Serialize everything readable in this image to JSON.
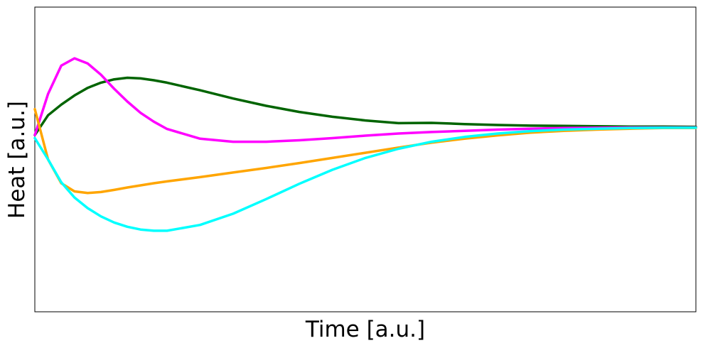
{
  "chart_data": {
    "type": "line",
    "xlabel": "Time [a.u.]",
    "ylabel": "Heat [a.u.]",
    "xlim": [
      0,
      1
    ],
    "ylim": [
      0,
      1
    ],
    "xticks": [],
    "yticks": [],
    "grid": false,
    "legend": false,
    "series": [
      {
        "color": "#006400",
        "x": [
          0,
          0.02,
          0.04,
          0.06,
          0.08,
          0.1,
          0.12,
          0.14,
          0.16,
          0.18,
          0.2,
          0.25,
          0.3,
          0.35,
          0.4,
          0.45,
          0.5,
          0.55,
          0.6,
          0.65,
          0.7,
          0.75,
          0.8,
          0.85,
          0.9,
          0.95,
          1.0
        ],
        "y": [
          0.58,
          0.645,
          0.68,
          0.71,
          0.735,
          0.752,
          0.763,
          0.768,
          0.766,
          0.76,
          0.752,
          0.727,
          0.7,
          0.676,
          0.656,
          0.64,
          0.628,
          0.619,
          0.62,
          0.616,
          0.613,
          0.611,
          0.61,
          0.609,
          0.608,
          0.608,
          0.607
        ]
      },
      {
        "color": "#ff00ff",
        "x": [
          0,
          0.02,
          0.04,
          0.06,
          0.08,
          0.1,
          0.12,
          0.14,
          0.16,
          0.18,
          0.2,
          0.25,
          0.3,
          0.35,
          0.4,
          0.45,
          0.5,
          0.55,
          0.6,
          0.65,
          0.7,
          0.75,
          0.8,
          0.85,
          0.9,
          0.95,
          1.0
        ],
        "y": [
          0.58,
          0.715,
          0.808,
          0.832,
          0.815,
          0.778,
          0.732,
          0.69,
          0.653,
          0.624,
          0.6,
          0.568,
          0.558,
          0.558,
          0.563,
          0.57,
          0.578,
          0.585,
          0.59,
          0.594,
          0.598,
          0.601,
          0.603,
          0.604,
          0.605,
          0.605,
          0.605
        ]
      },
      {
        "color": "#ffa500",
        "x": [
          0,
          0.02,
          0.04,
          0.06,
          0.08,
          0.1,
          0.12,
          0.14,
          0.16,
          0.18,
          0.2,
          0.25,
          0.3,
          0.35,
          0.4,
          0.45,
          0.5,
          0.55,
          0.6,
          0.65,
          0.7,
          0.75,
          0.8,
          0.85,
          0.9,
          0.95,
          1.0
        ],
        "y": [
          0.665,
          0.5,
          0.422,
          0.395,
          0.39,
          0.393,
          0.4,
          0.408,
          0.415,
          0.422,
          0.428,
          0.442,
          0.457,
          0.472,
          0.488,
          0.505,
          0.522,
          0.539,
          0.555,
          0.568,
          0.579,
          0.588,
          0.594,
          0.598,
          0.601,
          0.603,
          0.603
        ]
      },
      {
        "color": "#00ffff",
        "x": [
          0,
          0.02,
          0.04,
          0.06,
          0.08,
          0.1,
          0.12,
          0.14,
          0.16,
          0.18,
          0.2,
          0.25,
          0.3,
          0.35,
          0.4,
          0.45,
          0.5,
          0.55,
          0.6,
          0.65,
          0.7,
          0.75,
          0.8,
          0.85,
          0.9,
          0.95,
          1.0
        ],
        "y": [
          0.57,
          0.5,
          0.425,
          0.375,
          0.34,
          0.313,
          0.293,
          0.279,
          0.27,
          0.266,
          0.266,
          0.285,
          0.322,
          0.37,
          0.42,
          0.466,
          0.505,
          0.535,
          0.558,
          0.574,
          0.585,
          0.593,
          0.598,
          0.601,
          0.603,
          0.604,
          0.604
        ]
      }
    ]
  }
}
